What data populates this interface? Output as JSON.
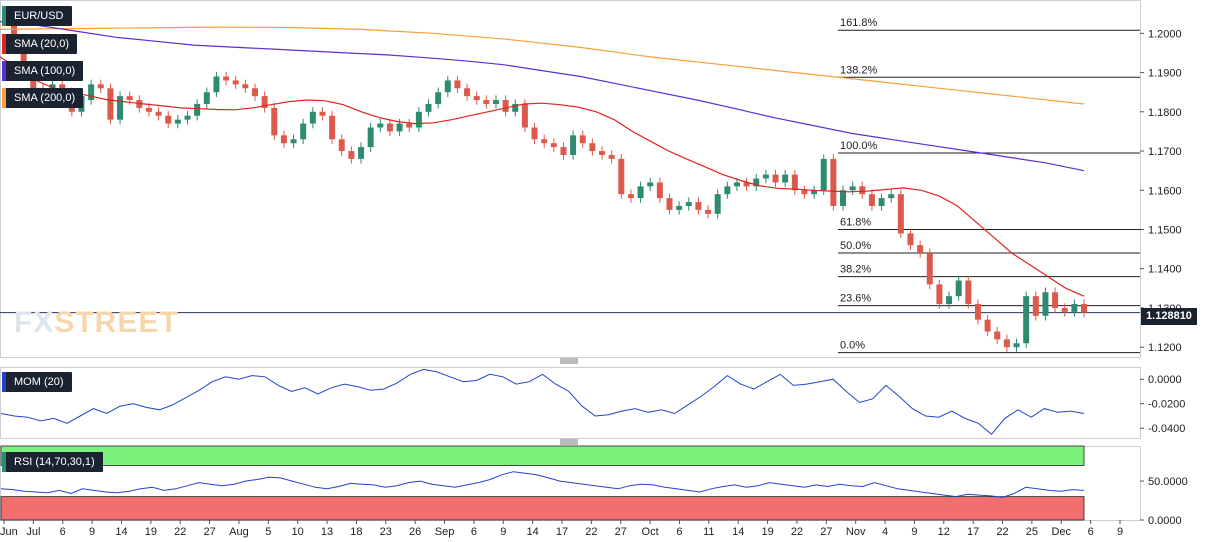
{
  "symbol": "EUR/USD",
  "colors": {
    "bull": "#2e8b72",
    "bear": "#dc5a4b",
    "sma20": "#e0241e",
    "sma100": "#5b2ed6",
    "sma200": "#f7a03a",
    "mom": "#2244cc",
    "rsi": "#2244cc",
    "rsi_overbought": "#7cf27c",
    "rsi_oversold": "#f26f6f"
  },
  "legend": {
    "symbol_label": "EUR/USD",
    "sma20_label": "SMA (20,0)",
    "sma100_label": "SMA (100,0)",
    "sma200_label": "SMA (200,0)",
    "mom_label": "MOM (20)",
    "rsi_label": "RSI (14,70,30,1)"
  },
  "watermark": {
    "part1": "FX",
    "part2": "STREET"
  },
  "last_price": "1.128810",
  "x_ticks": [
    "Jun",
    "Jul",
    "6",
    "9",
    "14",
    "19",
    "22",
    "27",
    "Aug",
    "5",
    "10",
    "13",
    "18",
    "23",
    "26",
    "Sep",
    "6",
    "9",
    "14",
    "17",
    "22",
    "27",
    "Oct",
    "6",
    "11",
    "14",
    "19",
    "22",
    "27",
    "Nov",
    "4",
    "9",
    "12",
    "17",
    "22",
    "25",
    "Dec",
    "6",
    "9"
  ],
  "chart_data": {
    "type": "candlestick",
    "main": {
      "ylim": [
        1.1175,
        1.2085
      ],
      "y_ticks": [
        "1.2000",
        "1.1900",
        "1.1800",
        "1.1700",
        "1.1600",
        "1.1500",
        "1.1400",
        "1.1300",
        "1.1200"
      ],
      "fibonacci": [
        {
          "label": "161.8%",
          "price": 1.2008
        },
        {
          "label": "138.2%",
          "price": 1.1888
        },
        {
          "label": "100.0%",
          "price": 1.1695
        },
        {
          "label": "61.8%",
          "price": 1.15
        },
        {
          "label": "50.0%",
          "price": 1.144
        },
        {
          "label": "38.2%",
          "price": 1.138
        },
        {
          "label": "23.6%",
          "price": 1.1306
        },
        {
          "label": "0.0%",
          "price": 1.1186
        }
      ]
    },
    "candles": [
      [
        1.203,
        1.196
      ],
      [
        1.196,
        1.19
      ],
      [
        1.191,
        1.186
      ],
      [
        1.186,
        1.183
      ],
      [
        1.184,
        1.187
      ],
      [
        1.187,
        1.184
      ],
      [
        1.185,
        1.18
      ],
      [
        1.18,
        1.184
      ],
      [
        1.183,
        1.187
      ],
      [
        1.187,
        1.186
      ],
      [
        1.186,
        1.178
      ],
      [
        1.178,
        1.184
      ],
      [
        1.184,
        1.183
      ],
      [
        1.183,
        1.181
      ],
      [
        1.181,
        1.18
      ],
      [
        1.18,
        1.179
      ],
      [
        1.179,
        1.177
      ],
      [
        1.177,
        1.178
      ],
      [
        1.178,
        1.179
      ],
      [
        1.179,
        1.182
      ],
      [
        1.182,
        1.185
      ],
      [
        1.185,
        1.189
      ],
      [
        1.189,
        1.188
      ],
      [
        1.188,
        1.187
      ],
      [
        1.187,
        1.186
      ],
      [
        1.186,
        1.184
      ],
      [
        1.184,
        1.181
      ],
      [
        1.181,
        1.174
      ],
      [
        1.174,
        1.172
      ],
      [
        1.172,
        1.173
      ],
      [
        1.173,
        1.177
      ],
      [
        1.177,
        1.18
      ],
      [
        1.18,
        1.179
      ],
      [
        1.179,
        1.173
      ],
      [
        1.173,
        1.17
      ],
      [
        1.17,
        1.168
      ],
      [
        1.168,
        1.171
      ],
      [
        1.171,
        1.176
      ],
      [
        1.176,
        1.177
      ],
      [
        1.177,
        1.175
      ],
      [
        1.175,
        1.177
      ],
      [
        1.177,
        1.176
      ],
      [
        1.176,
        1.18
      ],
      [
        1.18,
        1.182
      ],
      [
        1.182,
        1.185
      ],
      [
        1.185,
        1.188
      ],
      [
        1.188,
        1.186
      ],
      [
        1.186,
        1.184
      ],
      [
        1.184,
        1.183
      ],
      [
        1.183,
        1.182
      ],
      [
        1.182,
        1.183
      ],
      [
        1.183,
        1.18
      ],
      [
        1.18,
        1.182
      ],
      [
        1.182,
        1.176
      ],
      [
        1.176,
        1.173
      ],
      [
        1.173,
        1.172
      ],
      [
        1.172,
        1.171
      ],
      [
        1.171,
        1.169
      ],
      [
        1.169,
        1.174
      ],
      [
        1.174,
        1.172
      ],
      [
        1.172,
        1.17
      ],
      [
        1.17,
        1.169
      ],
      [
        1.169,
        1.168
      ],
      [
        1.168,
        1.159
      ],
      [
        1.159,
        1.158
      ],
      [
        1.158,
        1.161
      ],
      [
        1.161,
        1.162
      ],
      [
        1.162,
        1.158
      ],
      [
        1.158,
        1.155
      ],
      [
        1.155,
        1.156
      ],
      [
        1.156,
        1.157
      ],
      [
        1.157,
        1.155
      ],
      [
        1.155,
        1.154
      ],
      [
        1.154,
        1.159
      ],
      [
        1.159,
        1.161
      ],
      [
        1.161,
        1.162
      ],
      [
        1.162,
        1.161
      ],
      [
        1.161,
        1.163
      ],
      [
        1.163,
        1.164
      ],
      [
        1.164,
        1.162
      ],
      [
        1.162,
        1.164
      ],
      [
        1.164,
        1.16
      ],
      [
        1.16,
        1.159
      ],
      [
        1.159,
        1.16
      ],
      [
        1.16,
        1.168
      ],
      [
        1.168,
        1.156
      ],
      [
        1.156,
        1.16
      ],
      [
        1.16,
        1.161
      ],
      [
        1.161,
        1.159
      ],
      [
        1.159,
        1.156
      ],
      [
        1.156,
        1.158
      ],
      [
        1.158,
        1.159
      ],
      [
        1.159,
        1.149
      ],
      [
        1.149,
        1.146
      ],
      [
        1.146,
        1.144
      ],
      [
        1.144,
        1.136
      ],
      [
        1.136,
        1.131
      ],
      [
        1.131,
        1.133
      ],
      [
        1.133,
        1.137
      ],
      [
        1.137,
        1.131
      ],
      [
        1.131,
        1.127
      ],
      [
        1.127,
        1.124
      ],
      [
        1.124,
        1.122
      ],
      [
        1.122,
        1.12
      ],
      [
        1.12,
        1.121
      ],
      [
        1.121,
        1.133
      ],
      [
        1.133,
        1.128
      ],
      [
        1.128,
        1.134
      ],
      [
        1.134,
        1.13
      ],
      [
        1.13,
        1.129
      ],
      [
        1.129,
        1.131
      ],
      [
        1.131,
        1.1288
      ]
    ],
    "sma20": [
      1.194,
      1.191,
      1.188,
      1.186,
      1.185,
      1.184,
      1.183,
      1.1825,
      1.182,
      1.1815,
      1.181,
      1.1808,
      1.1806,
      1.1805,
      1.181,
      1.1818,
      1.1826,
      1.183,
      1.1828,
      1.1818,
      1.18,
      1.1785,
      1.1775,
      1.177,
      1.1772,
      1.178,
      1.179,
      1.18,
      1.181,
      1.182,
      1.1822,
      1.1818,
      1.1812,
      1.18,
      1.178,
      1.175,
      1.1725,
      1.17,
      1.168,
      1.166,
      1.164,
      1.1625,
      1.1612,
      1.1605,
      1.1603,
      1.16,
      1.1598,
      1.1596,
      1.1598,
      1.1602,
      1.1606,
      1.16,
      1.1585,
      1.156,
      1.152,
      1.148,
      1.144,
      1.141,
      1.138,
      1.135,
      1.133
    ],
    "sma100": [
      1.203,
      1.202,
      1.2005,
      1.199,
      1.198,
      1.197,
      1.1965,
      1.196,
      1.1955,
      1.195,
      1.1945,
      1.1938,
      1.193,
      1.192,
      1.1905,
      1.189,
      1.187,
      1.185,
      1.183,
      1.1808,
      1.1785,
      1.1765,
      1.1745,
      1.173,
      1.1715,
      1.17,
      1.1685,
      1.167,
      1.165
    ],
    "sma200": [
      1.201,
      1.2012,
      1.2014,
      1.2016,
      1.2015,
      1.201,
      1.2,
      1.1985,
      1.1965,
      1.194,
      1.192,
      1.19,
      1.188,
      1.186,
      1.184,
      1.182
    ],
    "mom": {
      "ylim": [
        -0.048,
        0.01
      ],
      "y_ticks": [
        "0.0000",
        "-0.0200",
        "-0.0400"
      ],
      "values": [
        -0.028,
        -0.03,
        -0.031,
        -0.034,
        -0.032,
        -0.036,
        -0.03,
        -0.024,
        -0.028,
        -0.022,
        -0.02,
        -0.023,
        -0.025,
        -0.021,
        -0.015,
        -0.009,
        -0.002,
        0.002,
        0.0,
        0.003,
        0.002,
        -0.005,
        -0.01,
        -0.007,
        -0.012,
        -0.007,
        -0.004,
        -0.006,
        -0.009,
        -0.008,
        -0.003,
        0.004,
        0.008,
        0.006,
        0.002,
        -0.002,
        -0.001,
        0.004,
        0.002,
        -0.004,
        -0.002,
        0.004,
        -0.004,
        -0.01,
        -0.022,
        -0.03,
        -0.029,
        -0.026,
        -0.024,
        -0.027,
        -0.025,
        -0.028,
        -0.021,
        -0.014,
        -0.006,
        0.003,
        -0.004,
        -0.008,
        -0.002,
        0.004,
        -0.005,
        -0.004,
        -0.002,
        0.0,
        -0.01,
        -0.019,
        -0.016,
        -0.005,
        -0.014,
        -0.024,
        -0.03,
        -0.031,
        -0.026,
        -0.032,
        -0.036,
        -0.045,
        -0.032,
        -0.025,
        -0.031,
        -0.024,
        -0.027,
        -0.026,
        -0.028
      ]
    },
    "rsi": {
      "ylim": [
        0,
        95
      ],
      "y_ticks": [
        "50.0000",
        "0.0000"
      ],
      "overbought": 70,
      "oversold": 30,
      "values": [
        40,
        39,
        37,
        36,
        35,
        38,
        34,
        40,
        38,
        36,
        35,
        37,
        40,
        42,
        38,
        40,
        44,
        48,
        46,
        44,
        46,
        50,
        52,
        55,
        54,
        50,
        46,
        42,
        40,
        43,
        47,
        46,
        45,
        42,
        44,
        48,
        50,
        46,
        44,
        42,
        45,
        48,
        52,
        58,
        62,
        60,
        58,
        54,
        50,
        48,
        46,
        44,
        42,
        40,
        44,
        46,
        45,
        42,
        40,
        38,
        36,
        40,
        43,
        45,
        42,
        44,
        48,
        46,
        44,
        42,
        45,
        43,
        46,
        44,
        43,
        48,
        44,
        40,
        38,
        36,
        34,
        32,
        30,
        33,
        32,
        31,
        29,
        34,
        42,
        40,
        38,
        37,
        39,
        38
      ]
    }
  }
}
